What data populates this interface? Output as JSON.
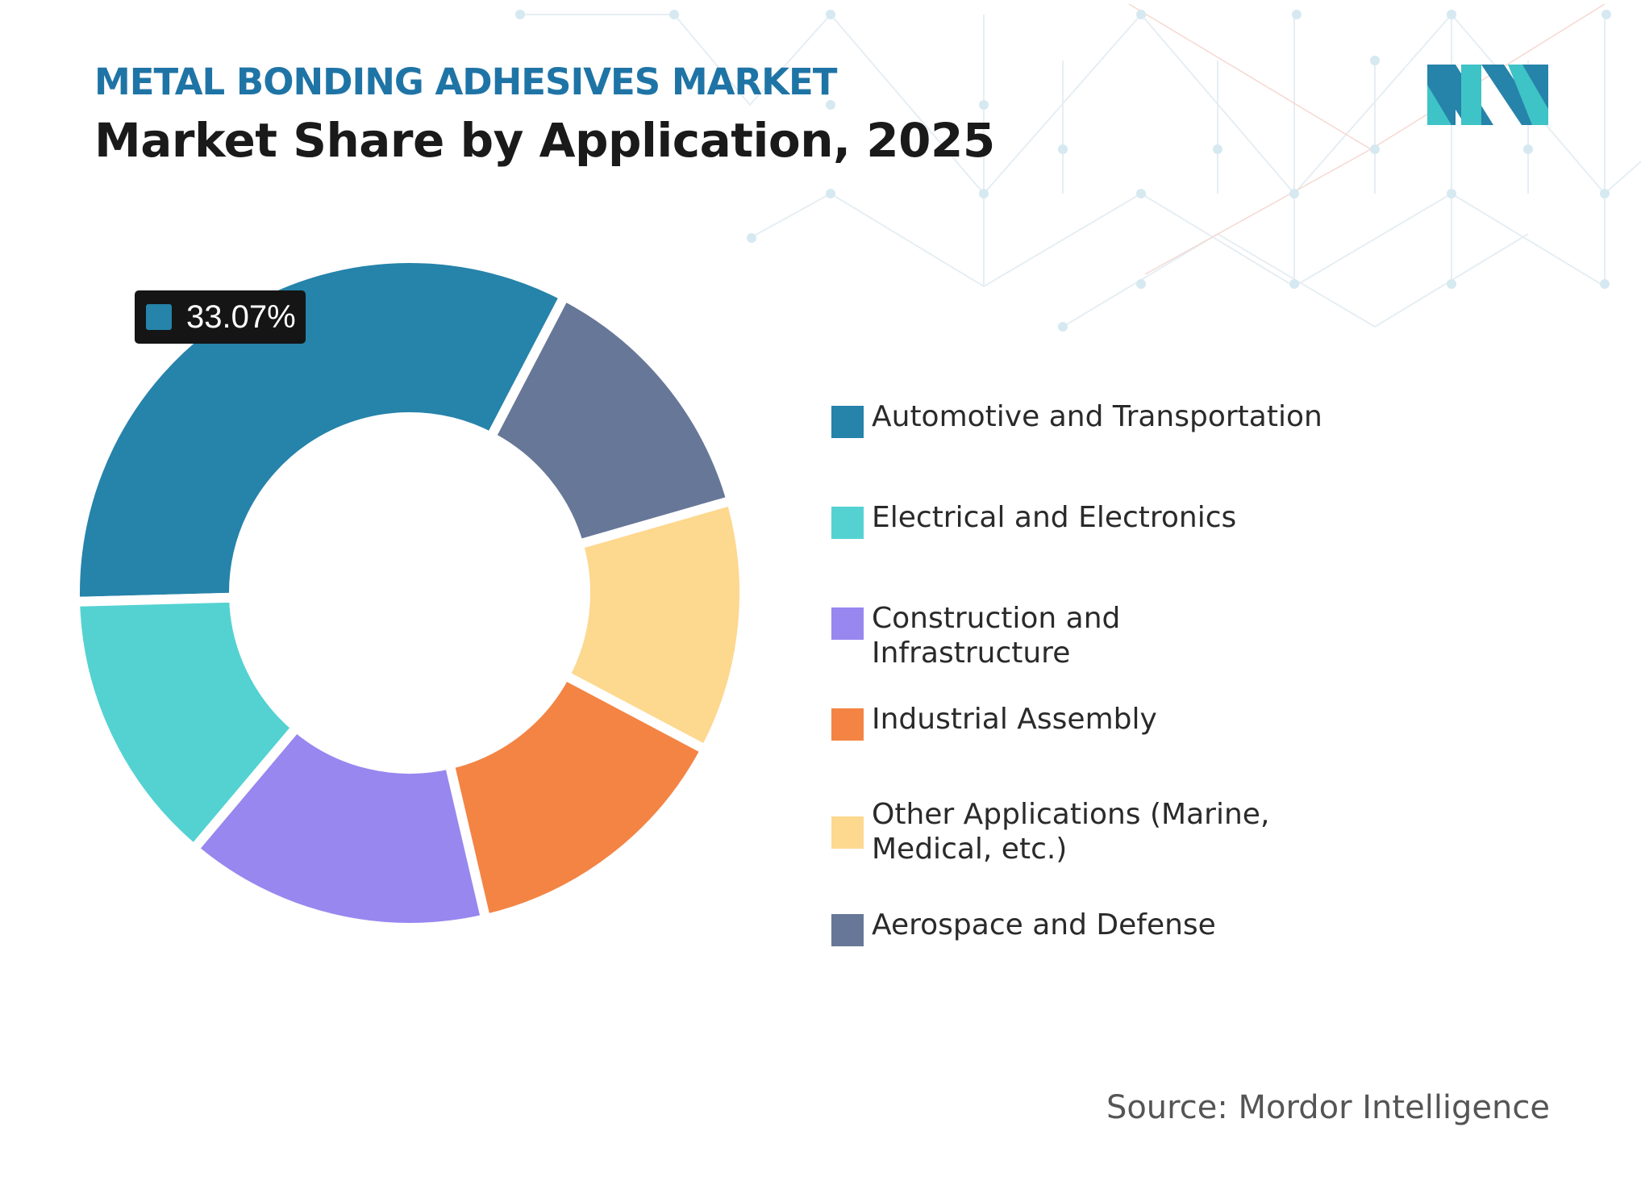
{
  "header": {
    "eyebrow": "METAL BONDING ADHESIVES MARKET",
    "title": "Market Share by Application, 2025"
  },
  "tooltip": {
    "label": "33.07%",
    "color": "#2683aa"
  },
  "source": "Source: Mordor Intelligence",
  "chart_data": {
    "type": "pie",
    "variant": "donut",
    "title": "Market Share by Application, 2025",
    "categories": [
      "Automotive and Transportation",
      "Aerospace and Defense",
      "Other Applications (Marine, Medical, etc.)",
      "Industrial Assembly",
      "Construction and Infrastructure",
      "Electrical and Electronics"
    ],
    "values": [
      33.07,
      12.9,
      12.2,
      13.6,
      14.8,
      13.43
    ],
    "colors": [
      "#2683aa",
      "#677797",
      "#fdd88f",
      "#f38444",
      "#9887ef",
      "#54d2d2"
    ],
    "data_labels": [
      "33.07%"
    ],
    "legend_position": "right",
    "legend": [
      {
        "label": "Automotive and Transportation",
        "color": "#2683aa"
      },
      {
        "label": "Electrical and Electronics",
        "color": "#54d2d2"
      },
      {
        "label": "Construction and Infrastructure",
        "color": "#9887ef"
      },
      {
        "label": "Industrial Assembly",
        "color": "#f38444"
      },
      {
        "label": "Other Applications (Marine, Medical, etc.)",
        "color": "#fdd88f"
      },
      {
        "label": "Aerospace and Defense",
        "color": "#677797"
      }
    ]
  }
}
